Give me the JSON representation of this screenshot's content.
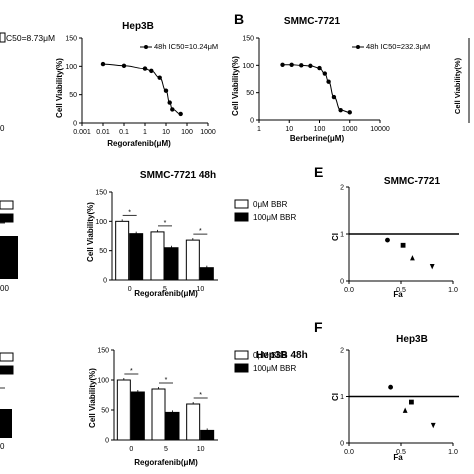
{
  "panel_letters": {
    "B": "B",
    "E": "E",
    "F": "F"
  },
  "chart_data": [
    {
      "id": "hep3b-dose",
      "type": "scatter",
      "title": "Hep3B",
      "xlabel": "Regorafenib(μM)",
      "ylabel": "Cell Viability(%)",
      "xscale": "log",
      "xlim": [
        0.001,
        1000
      ],
      "ylim": [
        0,
        150
      ],
      "xticks": [
        "0.001",
        "0.01",
        "0.1",
        "1",
        "10",
        "100",
        "1000"
      ],
      "yticks": [
        "0",
        "50",
        "100",
        "150"
      ],
      "legend": "48h IC50=10.24μM",
      "x": [
        0.01,
        0.1,
        1,
        2,
        5,
        10,
        15,
        20,
        50
      ],
      "y": [
        104,
        101,
        96,
        92,
        80,
        57,
        36,
        24,
        16
      ]
    },
    {
      "id": "smmc-dose",
      "type": "scatter",
      "title": "SMMC-7721",
      "xlabel": "Berberine(μM)",
      "ylabel": "Cell Viability(%)",
      "xscale": "log",
      "xlim": [
        1,
        10000
      ],
      "ylim": [
        0,
        150
      ],
      "xticks": [
        "1",
        "10",
        "100",
        "1000",
        "10000"
      ],
      "yticks": [
        "0",
        "50",
        "100",
        "150"
      ],
      "legend": "48h IC50=232.3μM",
      "x": [
        6,
        12,
        25,
        50,
        100,
        150,
        200,
        300,
        500,
        1000
      ],
      "y": [
        101,
        101,
        100,
        99,
        95,
        85,
        70,
        42,
        18,
        14
      ]
    },
    {
      "id": "smmc-bar",
      "type": "bar",
      "title": "SMMC-7721  48h",
      "xlabel": "Regorafenib(μM)",
      "ylabel": "Cell Viability(%)",
      "ylim": [
        0,
        150
      ],
      "yticks": [
        "0",
        "50",
        "100",
        "150"
      ],
      "categories": [
        "0",
        "5",
        "10"
      ],
      "series": [
        {
          "name": "0μM BBR",
          "values": [
            100,
            82,
            68
          ]
        },
        {
          "name": "100μM BBR",
          "values": [
            79,
            55,
            21
          ]
        }
      ],
      "annotations": [
        "*",
        "*",
        "*"
      ]
    },
    {
      "id": "hep3b-bar",
      "type": "bar",
      "title": "Hep3B 48h",
      "xlabel": "Regorafenib(μM)",
      "ylabel": "Cell Viability(%)",
      "ylim": [
        0,
        150
      ],
      "yticks": [
        "0",
        "50",
        "100",
        "150"
      ],
      "categories": [
        "0",
        "5",
        "10"
      ],
      "series": [
        {
          "name": "0μM BBR",
          "values": [
            100,
            85,
            60
          ]
        },
        {
          "name": "100μM BBR",
          "values": [
            80,
            46,
            16
          ]
        }
      ],
      "annotations": [
        "*",
        "*",
        "*"
      ]
    },
    {
      "id": "smmc-ci",
      "type": "scatter",
      "title": "SMMC-7721",
      "xlabel": "Fa",
      "ylabel": "CI",
      "xlim": [
        0,
        1
      ],
      "ylim": [
        0,
        2
      ],
      "xticks": [
        "0.0",
        "0.5",
        "1.0"
      ],
      "yticks": [
        "0",
        "1",
        "2"
      ],
      "reference_line": 1,
      "points": [
        {
          "x": 0.37,
          "y": 0.87,
          "marker": "circle"
        },
        {
          "x": 0.52,
          "y": 0.76,
          "marker": "square"
        },
        {
          "x": 0.61,
          "y": 0.49,
          "marker": "triangle-up"
        },
        {
          "x": 0.8,
          "y": 0.31,
          "marker": "triangle-down"
        }
      ]
    },
    {
      "id": "hep3b-ci",
      "type": "scatter",
      "title": "Hep3B",
      "xlabel": "Fa",
      "ylabel": "CI",
      "xlim": [
        0,
        1
      ],
      "ylim": [
        0,
        2
      ],
      "xticks": [
        "0.0",
        "0.5",
        "1.0"
      ],
      "yticks": [
        "0",
        "1",
        "2"
      ],
      "reference_line": 1,
      "points": [
        {
          "x": 0.4,
          "y": 1.2,
          "marker": "circle"
        },
        {
          "x": 0.6,
          "y": 0.88,
          "marker": "square"
        },
        {
          "x": 0.54,
          "y": 0.7,
          "marker": "triangle-up"
        },
        {
          "x": 0.81,
          "y": 0.38,
          "marker": "triangle-down"
        }
      ]
    },
    {
      "id": "cropped-left",
      "type": "bar",
      "partial": true,
      "legend_fragment": "C50=8.73μM",
      "tick_fragments": [
        "0",
        "00",
        "0"
      ]
    }
  ]
}
